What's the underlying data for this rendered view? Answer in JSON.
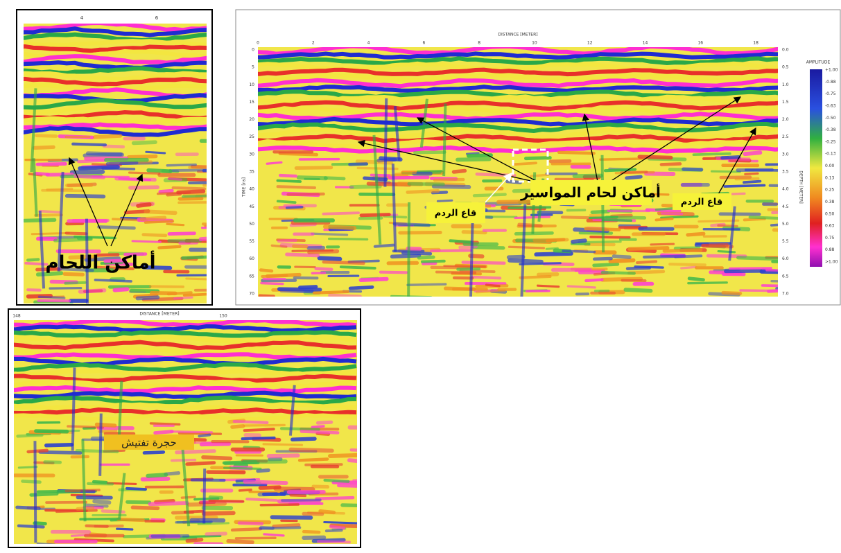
{
  "panel_1": {
    "x_ticks": [
      "4",
      "6"
    ],
    "annotation": "أماكن اللحام"
  },
  "panel_2": {
    "x_axis_title": "DISTANCE [METER]",
    "x_ticks": [
      "0",
      "2",
      "4",
      "6",
      "8",
      "10",
      "12",
      "14",
      "16",
      "18"
    ],
    "y_axis_title": "TIME [ns]",
    "y_ticks": [
      "0",
      "5",
      "10",
      "15",
      "20",
      "25",
      "30",
      "35",
      "40",
      "45",
      "50",
      "55",
      "60",
      "65",
      "70"
    ],
    "y2_axis_title": "DEPTH [METER]",
    "y2_ticks": [
      "0.0",
      "0.5",
      "1.0",
      "1.5",
      "2.0",
      "2.5",
      "3.0",
      "3.5",
      "4.0",
      "4.5",
      "5.0",
      "5.5",
      "6.0",
      "6.5",
      "7.0"
    ],
    "legend_title": "AMPLITUDE",
    "legend_labels": [
      "+1.00",
      "-0.88",
      "-0.75",
      "-0.63",
      "-0.50",
      "-0.38",
      "-0.25",
      "-0.13",
      "0.00",
      "0.13",
      "0.25",
      "0.38",
      "0.50",
      "0.63",
      "0.75",
      "0.88",
      ">1.00"
    ],
    "annotations": {
      "pipe_welds": "أماكن لحام المواسير",
      "fill_bottom_left": "قاع الردم",
      "fill_bottom_right": "قاع الردم"
    }
  },
  "panel_3": {
    "x_axis_title": "DISTANCE [METER]",
    "x_ticks": [
      "148",
      "150"
    ],
    "annotation": "حجرة تفتيش"
  }
}
